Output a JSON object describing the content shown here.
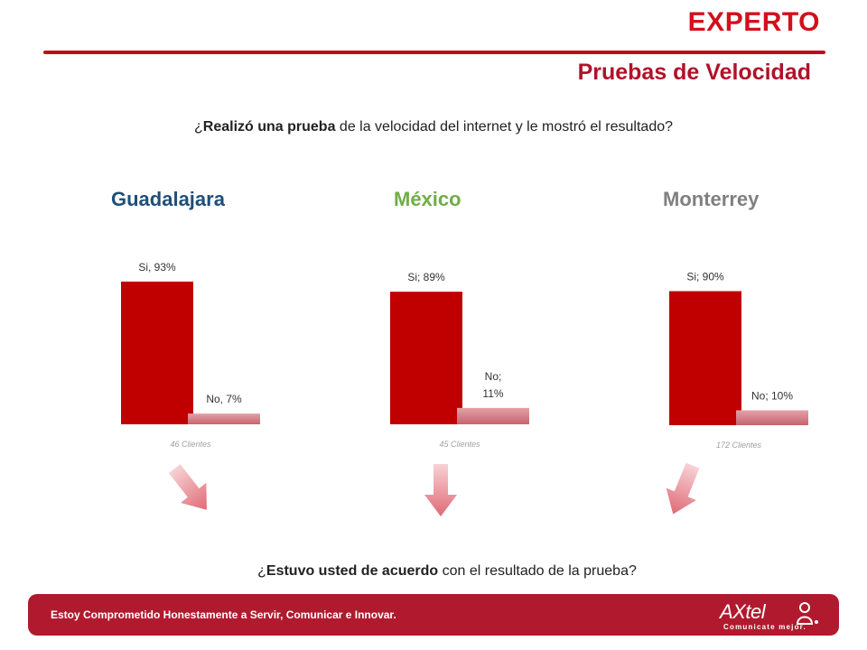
{
  "header": {
    "brand": "EXPERTO",
    "section": "Pruebas de Velocidad"
  },
  "questions": {
    "q1": {
      "open": "¿",
      "bold": "Realizó una prueba",
      "rest": " de la velocidad del internet y le mostró el resultado?"
    },
    "q2": {
      "open": "¿",
      "bold": "Estuvo usted de acuerdo",
      "rest": " con el resultado de la prueba?"
    }
  },
  "colors": {
    "si": "#c00000",
    "no": "#d9868e",
    "guadalajara": "#1f4e79",
    "mexico": "#70ad47",
    "monterrey": "#808080",
    "footer": "#b11a2e"
  },
  "chart_data": [
    {
      "type": "bar",
      "title": "Guadalajara",
      "categories": [
        "Si",
        "No"
      ],
      "values": [
        93,
        7
      ],
      "data_labels": [
        "Si, 93%",
        "No, 7%"
      ],
      "xlabel": "46 Clientes",
      "ylim": [
        0,
        100
      ]
    },
    {
      "type": "bar",
      "title": "México",
      "categories": [
        "Si",
        "No"
      ],
      "values": [
        89,
        11
      ],
      "data_labels": [
        "Si; 89%",
        "No;|11%"
      ],
      "xlabel": "45 Clientes",
      "ylim": [
        0,
        100
      ]
    },
    {
      "type": "bar",
      "title": "Monterrey",
      "categories": [
        "Si",
        "No"
      ],
      "values": [
        90,
        10
      ],
      "data_labels": [
        "Si; 90%",
        "No; 10%"
      ],
      "xlabel": "172 Clientes",
      "ylim": [
        0,
        100
      ]
    }
  ],
  "footer": {
    "slogan": "Estoy Comprometido Honestamente a Servir, Comunicar e Innovar.",
    "logo_name": "AXtel",
    "logo_tagline": "Comunicate mejor."
  },
  "icons": {
    "arrow": "down-arrow-icon",
    "logo": "axtel-logo-icon"
  }
}
